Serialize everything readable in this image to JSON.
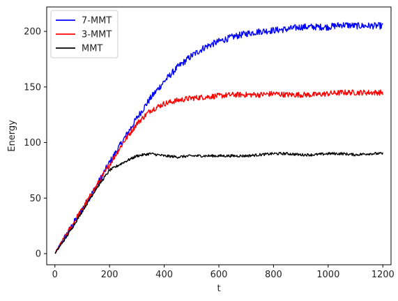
{
  "chart_data": {
    "type": "line",
    "xlabel": "t",
    "ylabel": "Energy",
    "xlim": [
      -30,
      1230
    ],
    "ylim": [
      -10,
      222
    ],
    "xticks": [
      0,
      200,
      400,
      600,
      800,
      1000,
      1200
    ],
    "yticks": [
      0,
      50,
      100,
      150,
      200
    ],
    "grid": false,
    "legend_position": "top-left",
    "series": [
      {
        "name": "7-MMT",
        "color": "#0000ff",
        "x": [
          0,
          50,
          100,
          150,
          200,
          250,
          300,
          350,
          400,
          450,
          500,
          550,
          600,
          650,
          700,
          750,
          800,
          850,
          900,
          950,
          1000,
          1050,
          1100,
          1150,
          1200
        ],
        "y": [
          0,
          20,
          40,
          60,
          82,
          102,
          122,
          140,
          155,
          168,
          178,
          186,
          191,
          195,
          198,
          200,
          201,
          202,
          204,
          204,
          204,
          206,
          205,
          205,
          205
        ],
        "noise": 3
      },
      {
        "name": "3-MMT",
        "color": "#ff0000",
        "x": [
          0,
          50,
          100,
          150,
          200,
          250,
          300,
          350,
          400,
          450,
          500,
          550,
          600,
          650,
          700,
          750,
          800,
          850,
          900,
          950,
          1000,
          1050,
          1100,
          1150,
          1200
        ],
        "y": [
          0,
          20,
          40,
          60,
          80,
          100,
          117,
          129,
          135,
          138,
          140,
          141,
          142,
          143,
          143,
          143,
          144,
          143,
          143,
          143,
          144,
          145,
          145,
          145,
          145
        ],
        "noise": 2.5
      },
      {
        "name": "MMT",
        "color": "#000000",
        "x": [
          0,
          50,
          100,
          150,
          200,
          250,
          300,
          350,
          400,
          450,
          500,
          550,
          600,
          650,
          700,
          750,
          800,
          850,
          900,
          950,
          1000,
          1050,
          1100,
          1150,
          1200
        ],
        "y": [
          0,
          18,
          38,
          58,
          75,
          82,
          88,
          90,
          88,
          87,
          88,
          88,
          88,
          88,
          88,
          89,
          90,
          90,
          89,
          89,
          90,
          90,
          89,
          90,
          90
        ],
        "noise": 1.2
      }
    ]
  }
}
